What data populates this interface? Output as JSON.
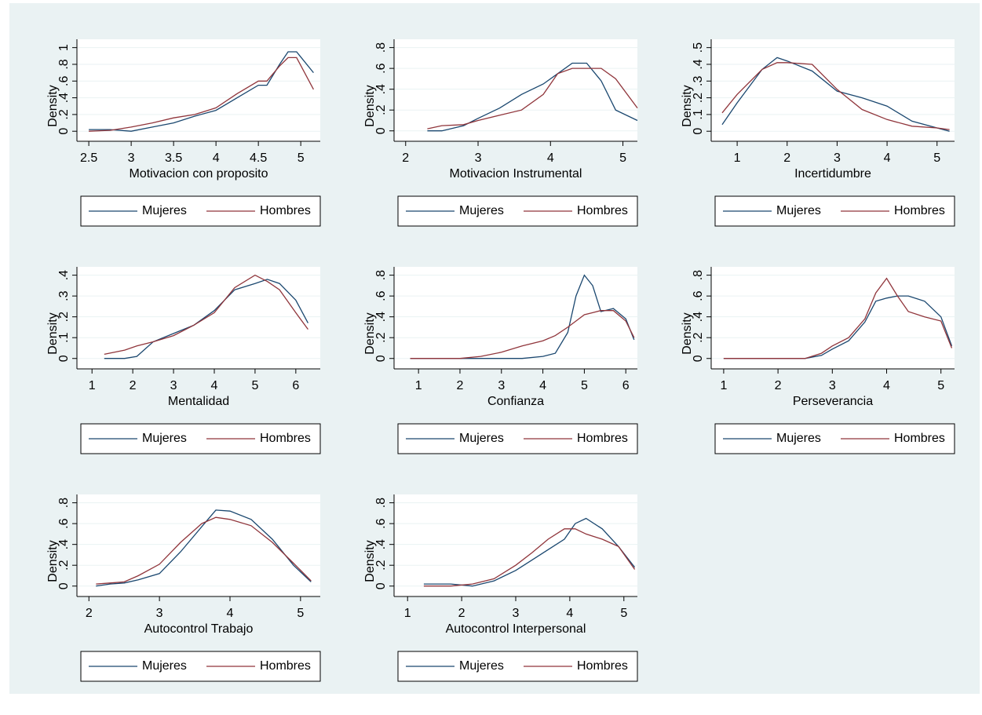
{
  "chart_data": [
    {
      "type": "line",
      "xtitle": "Motivacion con proposito",
      "ytitle": "Density",
      "grid": true,
      "xlim": [
        2.36,
        5.23
      ],
      "ylim": [
        -0.12,
        1.1
      ],
      "xticks": [
        2.5,
        3,
        3.5,
        4,
        4.5,
        5
      ],
      "yticks": [
        0,
        {
          "value": 0.2,
          "label": ".2"
        },
        {
          "value": 0.4,
          "label": ".4"
        },
        {
          "value": 0.6,
          "label": ".6"
        },
        {
          "value": 0.8,
          "label": ".8"
        },
        1
      ],
      "x": [
        2.5,
        2.75,
        3.0,
        3.25,
        3.5,
        3.75,
        4.0,
        4.25,
        4.5,
        4.6,
        4.75,
        4.85,
        4.95,
        5.15
      ],
      "series": [
        {
          "name": "Mujeres",
          "color": "#1a476f",
          "values": [
            0.02,
            0.02,
            0.0,
            0.05,
            0.1,
            0.18,
            0.25,
            0.4,
            0.55,
            0.55,
            0.8,
            0.95,
            0.95,
            0.7
          ]
        },
        {
          "name": "Hombres",
          "color": "#90353b",
          "values": [
            0.0,
            0.01,
            0.05,
            0.1,
            0.16,
            0.2,
            0.28,
            0.45,
            0.6,
            0.6,
            0.78,
            0.88,
            0.88,
            0.5
          ]
        }
      ]
    },
    {
      "type": "line",
      "xtitle": "Motivacion Instrumental",
      "ytitle": "Density",
      "grid": true,
      "xlim": [
        1.84,
        5.2
      ],
      "ylim": [
        -0.1,
        0.88
      ],
      "xticks": [
        2,
        3,
        4,
        5
      ],
      "yticks": [
        0,
        {
          "value": 0.2,
          "label": ".2"
        },
        {
          "value": 0.4,
          "label": ".4"
        },
        {
          "value": 0.6,
          "label": ".6"
        },
        {
          "value": 0.8,
          "label": ".8"
        }
      ],
      "x": [
        2.3,
        2.5,
        2.8,
        3.0,
        3.3,
        3.6,
        3.9,
        4.1,
        4.3,
        4.5,
        4.7,
        4.9,
        5.2
      ],
      "series": [
        {
          "name": "Mujeres",
          "color": "#1a476f",
          "values": [
            0.0,
            0.0,
            0.05,
            0.12,
            0.22,
            0.35,
            0.45,
            0.55,
            0.65,
            0.65,
            0.48,
            0.2,
            0.1
          ]
        },
        {
          "name": "Hombres",
          "color": "#90353b",
          "values": [
            0.02,
            0.05,
            0.06,
            0.1,
            0.15,
            0.2,
            0.35,
            0.55,
            0.6,
            0.6,
            0.6,
            0.5,
            0.22
          ]
        }
      ]
    },
    {
      "type": "line",
      "xtitle": "Incertidumbre",
      "ytitle": "Density",
      "grid": true,
      "xlim": [
        0.48,
        5.35
      ],
      "ylim": [
        -0.06,
        0.55
      ],
      "xticks": [
        1,
        2,
        3,
        4,
        5
      ],
      "yticks": [
        0,
        {
          "value": 0.1,
          "label": ".1"
        },
        {
          "value": 0.2,
          "label": ".2"
        },
        {
          "value": 0.3,
          "label": ".3"
        },
        {
          "value": 0.4,
          "label": ".4"
        },
        {
          "value": 0.5,
          "label": ".5"
        }
      ],
      "x": [
        0.7,
        1.0,
        1.5,
        1.8,
        2.0,
        2.5,
        3.0,
        3.5,
        4.0,
        4.5,
        5.0,
        5.25
      ],
      "series": [
        {
          "name": "Mujeres",
          "color": "#1a476f",
          "values": [
            0.04,
            0.17,
            0.37,
            0.44,
            0.42,
            0.36,
            0.24,
            0.2,
            0.15,
            0.06,
            0.02,
            0.0
          ]
        },
        {
          "name": "Hombres",
          "color": "#90353b",
          "values": [
            0.11,
            0.22,
            0.37,
            0.41,
            0.41,
            0.4,
            0.25,
            0.13,
            0.07,
            0.03,
            0.02,
            0.01
          ]
        }
      ]
    },
    {
      "type": "line",
      "xtitle": "Mentalidad",
      "ytitle": "Density",
      "grid": true,
      "xlim": [
        0.63,
        6.6
      ],
      "ylim": [
        -0.05,
        0.44
      ],
      "xticks": [
        1,
        2,
        3,
        4,
        5,
        6
      ],
      "yticks": [
        0,
        {
          "value": 0.1,
          "label": ".1"
        },
        {
          "value": 0.2,
          "label": ".2"
        },
        {
          "value": 0.3,
          "label": ".3"
        },
        {
          "value": 0.4,
          "label": ".4"
        }
      ],
      "x": [
        1.3,
        1.8,
        2.1,
        2.5,
        3.0,
        3.5,
        4.0,
        4.5,
        5.0,
        5.3,
        5.6,
        6.0,
        6.3
      ],
      "series": [
        {
          "name": "Mujeres",
          "color": "#1a476f",
          "values": [
            0,
            0,
            0.01,
            0.08,
            0.12,
            0.16,
            0.23,
            0.33,
            0.36,
            0.38,
            0.36,
            0.28,
            0.17
          ]
        },
        {
          "name": "Hombres",
          "color": "#90353b",
          "values": [
            0.02,
            0.04,
            0.06,
            0.08,
            0.11,
            0.16,
            0.22,
            0.34,
            0.4,
            0.37,
            0.33,
            0.22,
            0.14
          ]
        }
      ]
    },
    {
      "type": "line",
      "xtitle": "Confianza",
      "ytitle": "Density",
      "grid": true,
      "xlim": [
        0.41,
        6.28
      ],
      "ylim": [
        -0.1,
        0.88
      ],
      "xticks": [
        1,
        2,
        3,
        4,
        5,
        6
      ],
      "yticks": [
        0,
        {
          "value": 0.2,
          "label": ".2"
        },
        {
          "value": 0.4,
          "label": ".4"
        },
        {
          "value": 0.6,
          "label": ".6"
        },
        {
          "value": 0.8,
          "label": ".8"
        }
      ],
      "x": [
        0.8,
        1.2,
        2.0,
        2.5,
        3.0,
        3.5,
        4.0,
        4.3,
        4.6,
        4.8,
        5.0,
        5.2,
        5.4,
        5.7,
        6.0,
        6.2
      ],
      "series": [
        {
          "name": "Mujeres",
          "color": "#1a476f",
          "values": [
            0.0,
            0.0,
            0.0,
            0.0,
            0.0,
            0.0,
            0.02,
            0.05,
            0.25,
            0.6,
            0.8,
            0.7,
            0.45,
            0.48,
            0.38,
            0.18
          ]
        },
        {
          "name": "Hombres",
          "color": "#90353b",
          "values": [
            0,
            0,
            0,
            0.02,
            0.06,
            0.12,
            0.17,
            0.22,
            0.3,
            0.36,
            0.42,
            0.44,
            0.46,
            0.46,
            0.36,
            0.2
          ]
        }
      ]
    },
    {
      "type": "line",
      "xtitle": "Perseverancia",
      "ytitle": "Density",
      "grid": true,
      "xlim": [
        0.77,
        5.25
      ],
      "ylim": [
        -0.1,
        0.88
      ],
      "xticks": [
        1,
        2,
        3,
        4,
        5
      ],
      "yticks": [
        0,
        {
          "value": 0.2,
          "label": ".2"
        },
        {
          "value": 0.4,
          "label": ".4"
        },
        {
          "value": 0.6,
          "label": ".6"
        },
        {
          "value": 0.8,
          "label": ".8"
        }
      ],
      "x": [
        1.0,
        2.0,
        2.5,
        2.8,
        3.0,
        3.3,
        3.6,
        3.8,
        4.0,
        4.2,
        4.4,
        4.7,
        5.0,
        5.2
      ],
      "series": [
        {
          "name": "Mujeres",
          "color": "#1a476f",
          "values": [
            0,
            0,
            0,
            0.03,
            0.09,
            0.17,
            0.35,
            0.55,
            0.58,
            0.6,
            0.6,
            0.55,
            0.4,
            0.12
          ]
        },
        {
          "name": "Hombres",
          "color": "#90353b",
          "values": [
            0,
            0,
            0,
            0.05,
            0.12,
            0.2,
            0.38,
            0.63,
            0.77,
            0.6,
            0.45,
            0.4,
            0.36,
            0.1
          ]
        }
      ]
    },
    {
      "type": "line",
      "xtitle": "Autocontrol Trabajo",
      "ytitle": "Density",
      "grid": true,
      "xlim": [
        1.83,
        5.28
      ],
      "ylim": [
        -0.1,
        0.88
      ],
      "xticks": [
        2,
        3,
        4,
        5
      ],
      "yticks": [
        0,
        {
          "value": 0.2,
          "label": ".2"
        },
        {
          "value": 0.4,
          "label": ".4"
        },
        {
          "value": 0.6,
          "label": ".6"
        },
        {
          "value": 0.8,
          "label": ".8"
        }
      ],
      "x": [
        2.1,
        2.3,
        2.5,
        2.7,
        3.0,
        3.3,
        3.6,
        3.8,
        4.0,
        4.3,
        4.6,
        4.9,
        5.15
      ],
      "series": [
        {
          "name": "Mujeres",
          "color": "#1a476f",
          "values": [
            0.0,
            0.02,
            0.03,
            0.06,
            0.12,
            0.33,
            0.57,
            0.73,
            0.72,
            0.64,
            0.45,
            0.2,
            0.04
          ]
        },
        {
          "name": "Hombres",
          "color": "#90353b",
          "values": [
            0.02,
            0.03,
            0.04,
            0.1,
            0.21,
            0.42,
            0.6,
            0.66,
            0.64,
            0.58,
            0.42,
            0.22,
            0.05
          ]
        }
      ]
    },
    {
      "type": "line",
      "xtitle": "Autocontrol Interpersonal",
      "ytitle": "Density",
      "grid": true,
      "xlim": [
        0.75,
        5.25
      ],
      "ylim": [
        -0.1,
        0.88
      ],
      "xticks": [
        1,
        2,
        3,
        4,
        5
      ],
      "yticks": [
        0,
        {
          "value": 0.2,
          "label": ".2"
        },
        {
          "value": 0.4,
          "label": ".4"
        },
        {
          "value": 0.6,
          "label": ".6"
        },
        {
          "value": 0.8,
          "label": ".8"
        }
      ],
      "x": [
        1.3,
        1.8,
        2.2,
        2.6,
        3.0,
        3.3,
        3.6,
        3.9,
        4.1,
        4.3,
        4.6,
        4.9,
        5.2
      ],
      "series": [
        {
          "name": "Mujeres",
          "color": "#1a476f",
          "values": [
            0.02,
            0.02,
            0.0,
            0.05,
            0.15,
            0.25,
            0.35,
            0.45,
            0.6,
            0.65,
            0.55,
            0.38,
            0.18
          ]
        },
        {
          "name": "Hombres",
          "color": "#90353b",
          "values": [
            0.0,
            0.0,
            0.02,
            0.07,
            0.2,
            0.32,
            0.45,
            0.55,
            0.55,
            0.5,
            0.45,
            0.38,
            0.16
          ]
        }
      ]
    }
  ]
}
